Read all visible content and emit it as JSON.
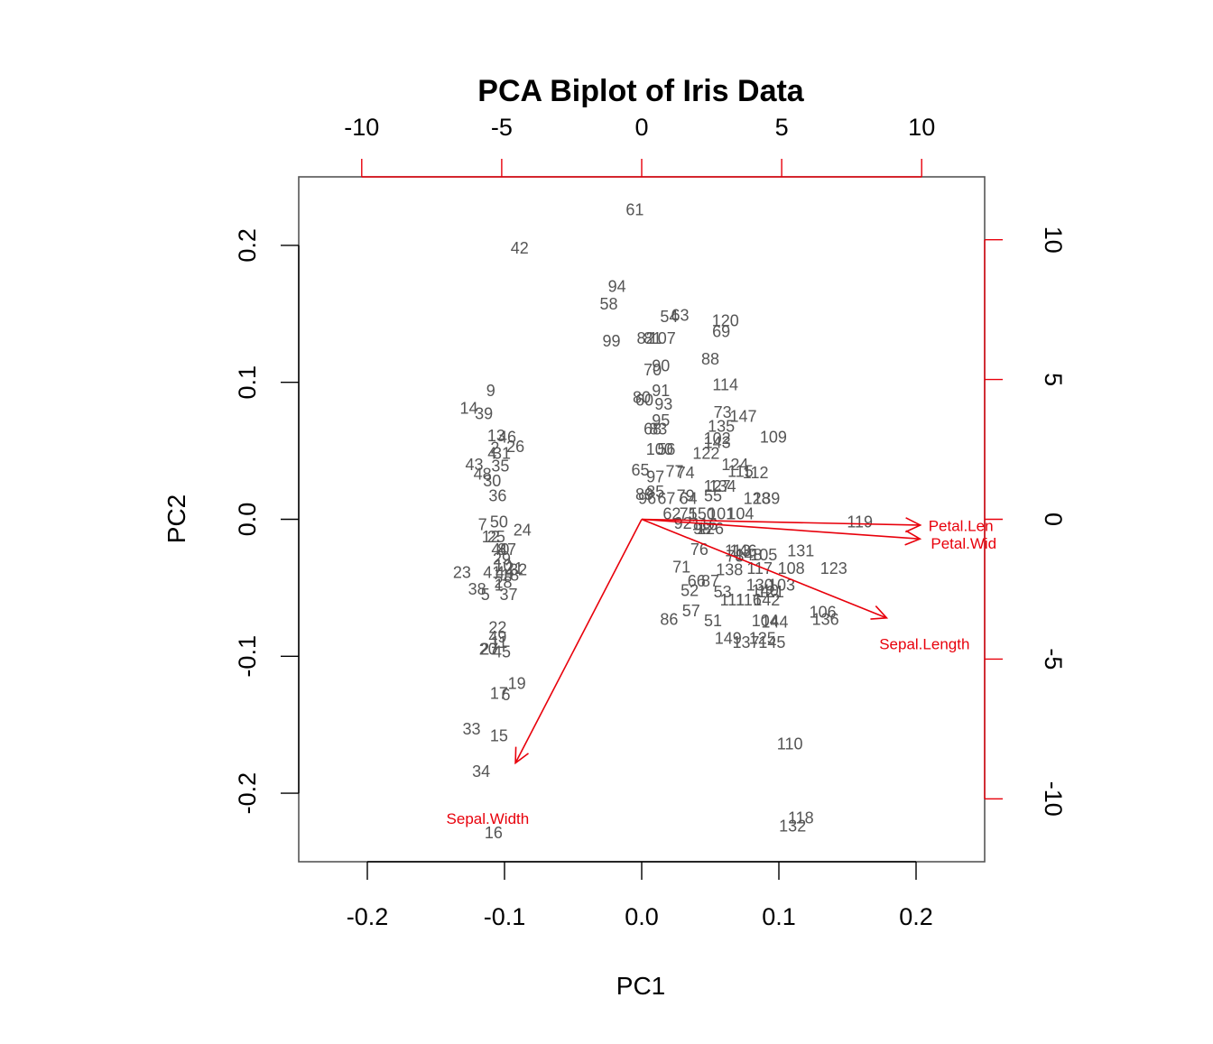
{
  "chart_data": {
    "type": "scatter",
    "title": "PCA Biplot of Iris Data",
    "xlabel": "PC1",
    "ylabel": "PC2",
    "xlim": [
      -0.25,
      0.25
    ],
    "ylim": [
      -0.25,
      0.25
    ],
    "x_ticks": [
      "-0.2",
      "-0.1",
      "0.0",
      "0.1",
      "0.2"
    ],
    "y_ticks": [
      "-0.2",
      "-0.1",
      "0.0",
      "0.1",
      "0.2"
    ],
    "top_axis": {
      "lim": [
        -10,
        10
      ],
      "ticks": [
        "-10",
        "-5",
        "0",
        "5",
        "10"
      ],
      "color": "#e8000b"
    },
    "right_axis": {
      "lim": [
        -10,
        10
      ],
      "ticks": [
        "-10",
        "-5",
        "0",
        "5",
        "10"
      ],
      "color": "#e8000b"
    },
    "grid": false,
    "point_color": "#666666",
    "arrow_color": "#e8000b",
    "points": [
      {
        "label": "61",
        "x": -0.005,
        "y": 0.226
      },
      {
        "label": "42",
        "x": -0.089,
        "y": 0.198
      },
      {
        "label": "94",
        "x": -0.018,
        "y": 0.17
      },
      {
        "label": "58",
        "x": -0.024,
        "y": 0.157
      },
      {
        "label": "54",
        "x": 0.02,
        "y": 0.148
      },
      {
        "label": "63",
        "x": 0.028,
        "y": 0.149
      },
      {
        "label": "120",
        "x": 0.061,
        "y": 0.145
      },
      {
        "label": "69",
        "x": 0.058,
        "y": 0.137
      },
      {
        "label": "99",
        "x": -0.022,
        "y": 0.13
      },
      {
        "label": "82",
        "x": 0.003,
        "y": 0.132
      },
      {
        "label": "81",
        "x": 0.008,
        "y": 0.132
      },
      {
        "label": "107",
        "x": 0.015,
        "y": 0.132
      },
      {
        "label": "88",
        "x": 0.05,
        "y": 0.117
      },
      {
        "label": "90",
        "x": 0.014,
        "y": 0.112
      },
      {
        "label": "70",
        "x": 0.008,
        "y": 0.109
      },
      {
        "label": "114",
        "x": 0.061,
        "y": 0.098
      },
      {
        "label": "9",
        "x": -0.11,
        "y": 0.094
      },
      {
        "label": "91",
        "x": 0.014,
        "y": 0.094
      },
      {
        "label": "80",
        "x": 0.0,
        "y": 0.089
      },
      {
        "label": "60",
        "x": 0.002,
        "y": 0.087
      },
      {
        "label": "93",
        "x": 0.016,
        "y": 0.084
      },
      {
        "label": "14",
        "x": -0.126,
        "y": 0.081
      },
      {
        "label": "39",
        "x": -0.115,
        "y": 0.077
      },
      {
        "label": "73",
        "x": 0.059,
        "y": 0.078
      },
      {
        "label": "147",
        "x": 0.074,
        "y": 0.075
      },
      {
        "label": "95",
        "x": 0.014,
        "y": 0.072
      },
      {
        "label": "135",
        "x": 0.058,
        "y": 0.068
      },
      {
        "label": "68",
        "x": 0.008,
        "y": 0.066
      },
      {
        "label": "83",
        "x": 0.012,
        "y": 0.066
      },
      {
        "label": "109",
        "x": 0.096,
        "y": 0.06
      },
      {
        "label": "13",
        "x": -0.106,
        "y": 0.061
      },
      {
        "label": "46",
        "x": -0.098,
        "y": 0.06
      },
      {
        "label": "102",
        "x": 0.055,
        "y": 0.059
      },
      {
        "label": "143",
        "x": 0.055,
        "y": 0.056
      },
      {
        "label": "2",
        "x": -0.107,
        "y": 0.052
      },
      {
        "label": "26",
        "x": -0.092,
        "y": 0.053
      },
      {
        "label": "4",
        "x": -0.109,
        "y": 0.048
      },
      {
        "label": "31",
        "x": -0.102,
        "y": 0.048
      },
      {
        "label": "100",
        "x": 0.013,
        "y": 0.051
      },
      {
        "label": "56",
        "x": 0.018,
        "y": 0.051
      },
      {
        "label": "122",
        "x": 0.047,
        "y": 0.048
      },
      {
        "label": "43",
        "x": -0.122,
        "y": 0.04
      },
      {
        "label": "35",
        "x": -0.103,
        "y": 0.039
      },
      {
        "label": "48",
        "x": -0.116,
        "y": 0.033
      },
      {
        "label": "30",
        "x": -0.109,
        "y": 0.028
      },
      {
        "label": "124",
        "x": 0.068,
        "y": 0.04
      },
      {
        "label": "115",
        "x": 0.072,
        "y": 0.035
      },
      {
        "label": "112",
        "x": 0.083,
        "y": 0.034
      },
      {
        "label": "65",
        "x": -0.001,
        "y": 0.036
      },
      {
        "label": "77",
        "x": 0.024,
        "y": 0.035
      },
      {
        "label": "74",
        "x": 0.032,
        "y": 0.034
      },
      {
        "label": "97",
        "x": 0.01,
        "y": 0.031
      },
      {
        "label": "127",
        "x": 0.055,
        "y": 0.024
      },
      {
        "label": "134",
        "x": 0.059,
        "y": 0.024
      },
      {
        "label": "36",
        "x": -0.105,
        "y": 0.017
      },
      {
        "label": "89",
        "x": 0.002,
        "y": 0.018
      },
      {
        "label": "85",
        "x": 0.01,
        "y": 0.02
      },
      {
        "label": "79",
        "x": 0.032,
        "y": 0.017
      },
      {
        "label": "96",
        "x": 0.004,
        "y": 0.015
      },
      {
        "label": "67",
        "x": 0.018,
        "y": 0.015
      },
      {
        "label": "64",
        "x": 0.034,
        "y": 0.015
      },
      {
        "label": "55",
        "x": 0.052,
        "y": 0.017
      },
      {
        "label": "128",
        "x": 0.084,
        "y": 0.015
      },
      {
        "label": "139",
        "x": 0.091,
        "y": 0.015
      },
      {
        "label": "62",
        "x": 0.022,
        "y": 0.004
      },
      {
        "label": "75",
        "x": 0.034,
        "y": 0.004
      },
      {
        "label": "150",
        "x": 0.044,
        "y": 0.004
      },
      {
        "label": "101",
        "x": 0.058,
        "y": 0.004
      },
      {
        "label": "104",
        "x": 0.072,
        "y": 0.004
      },
      {
        "label": "7",
        "x": -0.116,
        "y": -0.004
      },
      {
        "label": "50",
        "x": -0.104,
        "y": -0.002
      },
      {
        "label": "24",
        "x": -0.087,
        "y": -0.008
      },
      {
        "label": "92",
        "x": 0.03,
        "y": -0.003
      },
      {
        "label": "116",
        "x": 0.046,
        "y": -0.004
      },
      {
        "label": "98",
        "x": 0.044,
        "y": -0.007
      },
      {
        "label": "126",
        "x": 0.05,
        "y": -0.007
      },
      {
        "label": "119",
        "x": 0.159,
        "y": -0.002
      },
      {
        "label": "12",
        "x": -0.11,
        "y": -0.013
      },
      {
        "label": "25",
        "x": -0.106,
        "y": -0.013
      },
      {
        "label": "40",
        "x": -0.103,
        "y": -0.022
      },
      {
        "label": "8",
        "x": -0.102,
        "y": -0.022
      },
      {
        "label": "47",
        "x": -0.098,
        "y": -0.022
      },
      {
        "label": "76",
        "x": 0.042,
        "y": -0.022
      },
      {
        "label": "113",
        "x": 0.07,
        "y": -0.023
      },
      {
        "label": "146",
        "x": 0.074,
        "y": -0.023
      },
      {
        "label": "78",
        "x": 0.068,
        "y": -0.027
      },
      {
        "label": "148",
        "x": 0.078,
        "y": -0.026
      },
      {
        "label": "105",
        "x": 0.089,
        "y": -0.026
      },
      {
        "label": "131",
        "x": 0.116,
        "y": -0.023
      },
      {
        "label": "29",
        "x": -0.102,
        "y": -0.029
      },
      {
        "label": "10",
        "x": -0.101,
        "y": -0.034
      },
      {
        "label": "21",
        "x": -0.093,
        "y": -0.036
      },
      {
        "label": "32",
        "x": -0.09,
        "y": -0.037
      },
      {
        "label": "71",
        "x": 0.029,
        "y": -0.035
      },
      {
        "label": "138",
        "x": 0.064,
        "y": -0.037
      },
      {
        "label": "117",
        "x": 0.086,
        "y": -0.036
      },
      {
        "label": "108",
        "x": 0.109,
        "y": -0.036
      },
      {
        "label": "123",
        "x": 0.14,
        "y": -0.036
      },
      {
        "label": "23",
        "x": -0.131,
        "y": -0.039
      },
      {
        "label": "41",
        "x": -0.109,
        "y": -0.039
      },
      {
        "label": "44",
        "x": -0.1,
        "y": -0.039
      },
      {
        "label": "18",
        "x": -0.096,
        "y": -0.041
      },
      {
        "label": "28",
        "x": -0.101,
        "y": -0.046
      },
      {
        "label": "1",
        "x": -0.104,
        "y": -0.048
      },
      {
        "label": "66",
        "x": 0.04,
        "y": -0.045
      },
      {
        "label": "87",
        "x": 0.05,
        "y": -0.045
      },
      {
        "label": "130",
        "x": 0.086,
        "y": -0.048
      },
      {
        "label": "103",
        "x": 0.102,
        "y": -0.048
      },
      {
        "label": "38",
        "x": -0.12,
        "y": -0.051
      },
      {
        "label": "52",
        "x": 0.035,
        "y": -0.052
      },
      {
        "label": "53",
        "x": 0.059,
        "y": -0.053
      },
      {
        "label": "140",
        "x": 0.09,
        "y": -0.052
      },
      {
        "label": "121",
        "x": 0.094,
        "y": -0.053
      },
      {
        "label": "5",
        "x": -0.114,
        "y": -0.055
      },
      {
        "label": "37",
        "x": -0.097,
        "y": -0.055
      },
      {
        "label": "111",
        "x": 0.066,
        "y": -0.059
      },
      {
        "label": "116b",
        "x": 0.078,
        "y": -0.059
      },
      {
        "label": "142",
        "x": 0.091,
        "y": -0.059
      },
      {
        "label": "106",
        "x": 0.132,
        "y": -0.068
      },
      {
        "label": "86",
        "x": 0.02,
        "y": -0.073
      },
      {
        "label": "57",
        "x": 0.036,
        "y": -0.067
      },
      {
        "label": "51",
        "x": 0.052,
        "y": -0.074
      },
      {
        "label": "104b",
        "x": 0.09,
        "y": -0.074
      },
      {
        "label": "144",
        "x": 0.097,
        "y": -0.075
      },
      {
        "label": "136",
        "x": 0.134,
        "y": -0.073
      },
      {
        "label": "22",
        "x": -0.105,
        "y": -0.079
      },
      {
        "label": "49",
        "x": -0.105,
        "y": -0.086
      },
      {
        "label": "11",
        "x": -0.104,
        "y": -0.09
      },
      {
        "label": "149",
        "x": 0.063,
        "y": -0.087
      },
      {
        "label": "137",
        "x": 0.076,
        "y": -0.09
      },
      {
        "label": "125",
        "x": 0.088,
        "y": -0.087
      },
      {
        "label": "145",
        "x": 0.095,
        "y": -0.09
      },
      {
        "label": "20",
        "x": -0.112,
        "y": -0.095
      },
      {
        "label": "27",
        "x": -0.111,
        "y": -0.095
      },
      {
        "label": "45",
        "x": -0.102,
        "y": -0.097
      },
      {
        "label": "19",
        "x": -0.091,
        "y": -0.12
      },
      {
        "label": "17",
        "x": -0.104,
        "y": -0.127
      },
      {
        "label": "6",
        "x": -0.099,
        "y": -0.128
      },
      {
        "label": "33",
        "x": -0.124,
        "y": -0.153
      },
      {
        "label": "15",
        "x": -0.104,
        "y": -0.158
      },
      {
        "label": "110",
        "x": 0.108,
        "y": -0.164
      },
      {
        "label": "34",
        "x": -0.117,
        "y": -0.184
      },
      {
        "label": "118",
        "x": 0.116,
        "y": -0.218
      },
      {
        "label": "132",
        "x": 0.11,
        "y": -0.224
      },
      {
        "label": "16",
        "x": -0.108,
        "y": -0.229
      }
    ],
    "loadings": [
      {
        "name": "Sepal.Length",
        "x": 8.75,
        "y": -3.53
      },
      {
        "name": "Sepal.Width",
        "x": -4.51,
        "y": -8.72
      },
      {
        "name": "Petal.Length",
        "x": 9.95,
        "y": -0.21
      },
      {
        "name": "Petal.Width",
        "x": 9.94,
        "y": -0.7
      }
    ],
    "loading_labels": [
      {
        "name": "Petal.Len",
        "x": 11.4,
        "y": -0.22
      },
      {
        "name": "Petal.Wid",
        "x": 11.5,
        "y": -0.86
      },
      {
        "name": "Sepal.Length",
        "x": 10.1,
        "y": -4.45
      },
      {
        "name": "Sepal.Width",
        "x": -5.5,
        "y": -10.7
      }
    ]
  }
}
